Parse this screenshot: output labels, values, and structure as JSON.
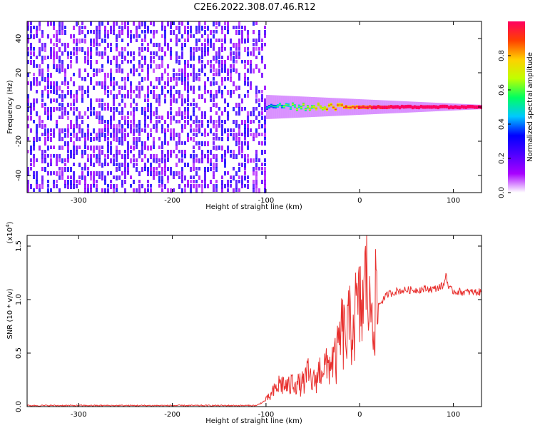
{
  "title": "C2E6.2022.308.07.46.R12",
  "colors": {
    "snr_line": "#e8302e",
    "axis": "#000000"
  },
  "colorbar": {
    "label": "Normalized spectral amplitude",
    "range": [
      0,
      1
    ],
    "ticks": [
      "0.0",
      "0.2",
      "0.4",
      "0.6",
      "0.8"
    ],
    "tick_values": [
      0,
      0.2,
      0.4,
      0.6,
      0.8
    ],
    "colormap": [
      "#ffffff",
      "#a800ff",
      "#5000ff",
      "#0000ff",
      "#00c8ff",
      "#00ff60",
      "#c0ff00",
      "#ffd000",
      "#ff4000",
      "#ff0060"
    ]
  },
  "chart_data": [
    {
      "type": "heatmap",
      "xlabel": "Height of straight line (km)",
      "ylabel": "Frequency (Hz)",
      "xlim": [
        -355,
        130
      ],
      "ylim": [
        -50,
        50
      ],
      "xticks": [
        "-300",
        "-200",
        "-100",
        "0",
        "100"
      ],
      "xtick_values": [
        -300,
        -200,
        -100,
        0,
        100
      ],
      "yticks": [
        "-40",
        "-20",
        "0",
        "20",
        "40"
      ],
      "ytick_values": [
        -40,
        -20,
        0,
        20,
        40
      ],
      "regions": [
        {
          "kind": "broadband_noise",
          "x_range": [
            -355,
            -100
          ],
          "freq_range": [
            -50,
            50
          ],
          "amplitude": 0.2
        },
        {
          "kind": "narrowband_signal",
          "x_range": [
            -100,
            130
          ],
          "freq_center": 0,
          "freq_width": 3,
          "amplitude_range": [
            0.3,
            1.0
          ]
        }
      ]
    },
    {
      "type": "line",
      "xlabel": "Height of straight line (km)",
      "ylabel": "SNR (10 * v/v)",
      "yscale_label": "(x10",
      "yscale_exp": "4",
      "yscale_close": ")",
      "xlim": [
        -355,
        130
      ],
      "ylim": [
        0,
        1.6
      ],
      "xticks": [
        "-300",
        "-200",
        "-100",
        "0",
        "100"
      ],
      "xtick_values": [
        -300,
        -200,
        -100,
        0,
        100
      ],
      "yticks": [
        "0.0",
        "0.5",
        "1.0",
        "1.5"
      ],
      "ytick_values": [
        0,
        0.5,
        1.0,
        1.5
      ],
      "series": [
        {
          "x": [
            -355,
            -300,
            -200,
            -110,
            -100,
            -95,
            -90,
            -85,
            -80,
            -75,
            -70,
            -65,
            -60,
            -55,
            -50,
            -45,
            -40,
            -35,
            -30,
            -25,
            -20,
            -15,
            -10,
            -5,
            0,
            5,
            8,
            10,
            12,
            15,
            20,
            25,
            30,
            40,
            50,
            60,
            70,
            80,
            85,
            90,
            92,
            95,
            100,
            110,
            120,
            130
          ],
          "y": [
            0.01,
            0.01,
            0.01,
            0.01,
            0.06,
            0.1,
            0.16,
            0.22,
            0.2,
            0.18,
            0.25,
            0.2,
            0.22,
            0.3,
            0.22,
            0.28,
            0.4,
            0.35,
            0.45,
            0.42,
            0.7,
            0.65,
            0.75,
            0.85,
            0.9,
            1.0,
            1.55,
            0.75,
            1.0,
            0.95,
            0.95,
            1.0,
            1.05,
            1.08,
            1.09,
            1.09,
            1.1,
            1.1,
            1.12,
            1.13,
            1.25,
            1.1,
            1.08,
            1.07,
            1.07,
            1.07
          ]
        }
      ]
    }
  ]
}
